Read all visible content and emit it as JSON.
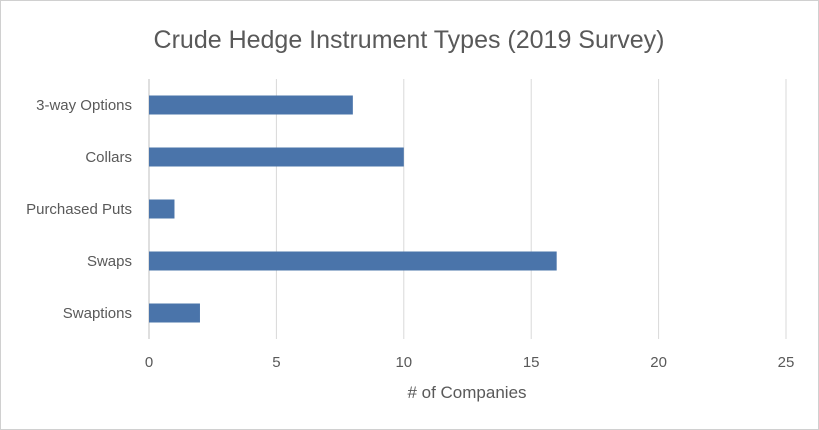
{
  "chart_data": {
    "type": "bar",
    "orientation": "horizontal",
    "title": "Crude Hedge Instrument Types (2019 Survey)",
    "xlabel": "# of Companies",
    "ylabel": "",
    "categories": [
      "3-way Options",
      "Collars",
      "Purchased Puts",
      "Swaps",
      "Swaptions"
    ],
    "values": [
      8,
      10,
      1,
      16,
      2
    ],
    "xlim": [
      0,
      25
    ],
    "x_ticks": [
      0,
      5,
      10,
      15,
      20,
      25
    ],
    "grid": "vertical",
    "legend": "none",
    "bar_color": "#4a74aa",
    "grid_color": "#d9d9d9",
    "text_color": "#595959"
  }
}
